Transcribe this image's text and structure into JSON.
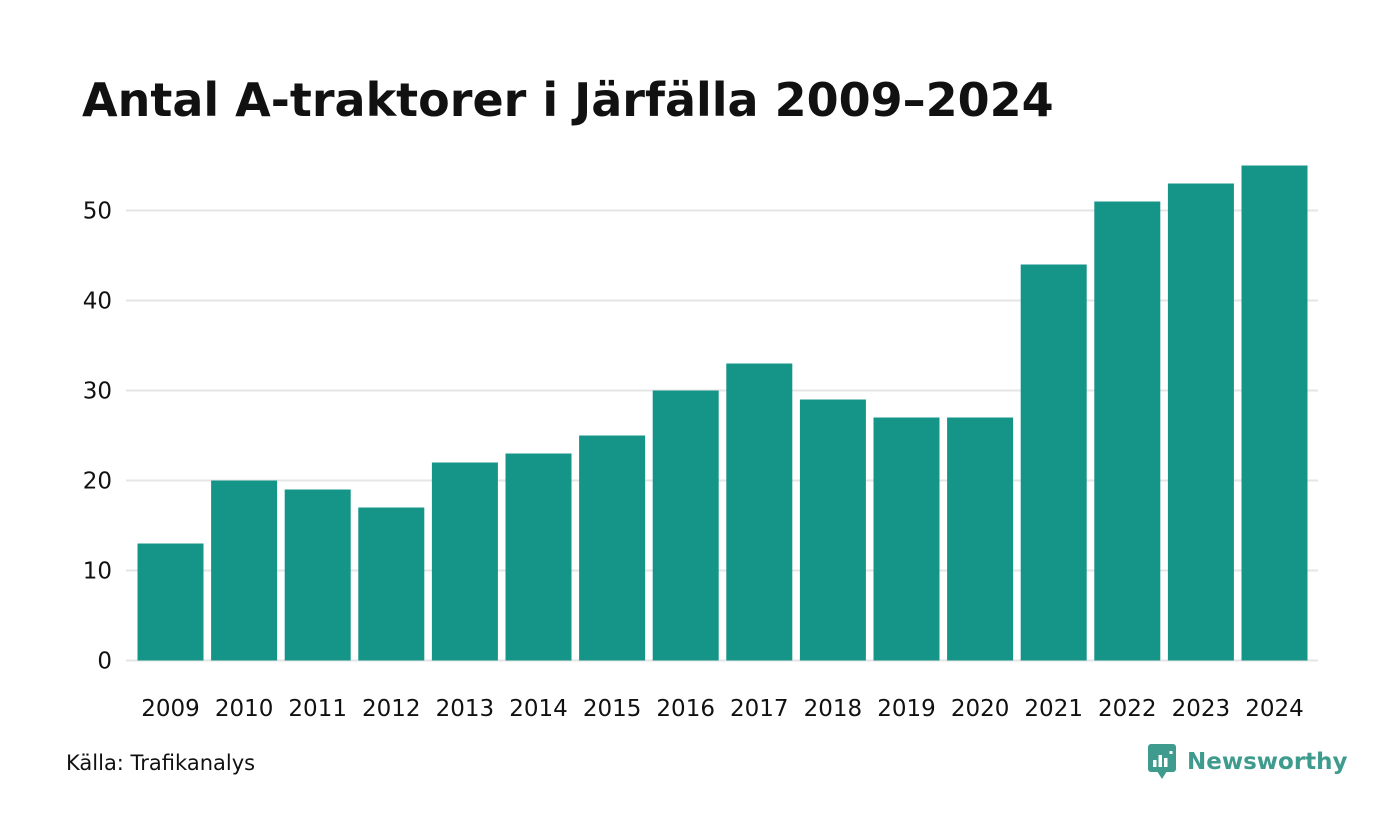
{
  "chart": {
    "title": "Antal A-traktorer i Järfälla 2009–2024"
  },
  "source_text": "Källa: Trafikanalys",
  "brand": {
    "name": "Newsworthy",
    "logo_icon": "bar-chart-speech-bubble-icon"
  },
  "colors": {
    "bar": "#159588",
    "gridline": "#e5e5e5",
    "text": "#111111",
    "brand": "#3e9b8e"
  },
  "chart_data": {
    "type": "bar",
    "title": "Antal A-traktorer i Järfälla 2009–2024",
    "xlabel": "",
    "ylabel": "",
    "categories": [
      "2009",
      "2010",
      "2011",
      "2012",
      "2013",
      "2014",
      "2015",
      "2016",
      "2017",
      "2018",
      "2019",
      "2020",
      "2021",
      "2022",
      "2023",
      "2024"
    ],
    "values": [
      13,
      20,
      19,
      17,
      22,
      23,
      25,
      30,
      33,
      29,
      27,
      27,
      44,
      51,
      53,
      55
    ],
    "y_ticks": [
      0,
      10,
      20,
      30,
      40,
      50
    ],
    "ylim": [
      0,
      55
    ],
    "grid": "horizontal",
    "legend": "none"
  }
}
